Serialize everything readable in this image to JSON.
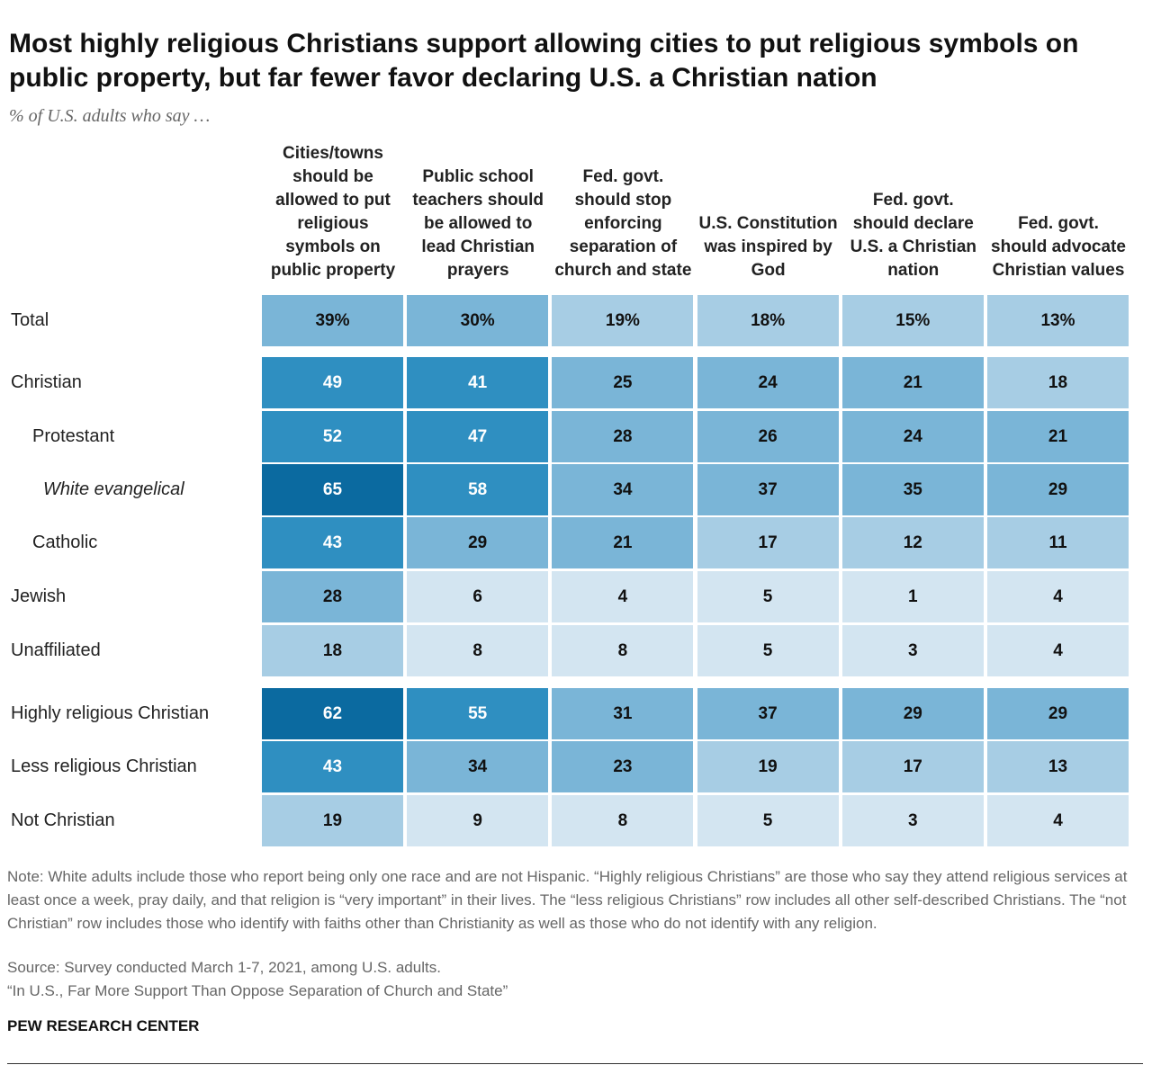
{
  "chart_data": {
    "type": "heatmap",
    "title": "Most highly religious Christians support allowing cities to put religious symbols on public property, but far fewer favor declaring U.S. a Christian nation",
    "subtitle": "% of U.S. adults who say …",
    "columns": [
      "Cities/towns should be allowed to put religious symbols on public property",
      "Public school teachers should be allowed to lead Christian prayers",
      "Fed. govt. should stop enforcing separation of church and state",
      "U.S. Constitution was inspired by God",
      "Fed. govt. should declare U.S. a Christian nation",
      "Fed. govt. should advocate Christian values"
    ],
    "categories": [
      "Total",
      "Christian",
      "Protestant",
      "White evangelical",
      "Catholic",
      "Jewish",
      "Unaffiliated",
      "Highly religious Christian",
      "Less religious Christian",
      "Not Christian"
    ],
    "values": [
      [
        39,
        30,
        19,
        18,
        15,
        13
      ],
      [
        49,
        41,
        25,
        24,
        21,
        18
      ],
      [
        52,
        47,
        28,
        26,
        24,
        21
      ],
      [
        65,
        58,
        34,
        37,
        35,
        29
      ],
      [
        43,
        29,
        21,
        17,
        12,
        11
      ],
      [
        28,
        6,
        4,
        5,
        1,
        4
      ],
      [
        18,
        8,
        8,
        5,
        3,
        4
      ],
      [
        62,
        55,
        31,
        37,
        29,
        29
      ],
      [
        43,
        34,
        23,
        19,
        17,
        13
      ],
      [
        19,
        9,
        8,
        5,
        3,
        4
      ]
    ],
    "value_labels": [
      [
        "39%",
        "30%",
        "19%",
        "18%",
        "15%",
        "13%"
      ],
      null,
      null,
      null,
      null,
      null,
      null,
      null,
      null,
      null
    ],
    "colors": [
      "#d3e5f1",
      "#a7cde4",
      "#7ab5d7",
      "#2f8fc1",
      "#0b6aa0"
    ],
    "note": "Note: White adults include those who report being only one race and are not Hispanic. “Highly religious Christians” are those who say they attend religious services at least once a week, pray daily, and that religion is “very important” in their lives. The “less religious Christians” row includes all other self-described Christians. The “not Christian” row includes those who identify with faiths other than Christianity as well as those who do not identify with any religion.",
    "source": "Source: Survey conducted March 1-7, 2021, among U.S. adults.",
    "report": "“In U.S., Far More Support Than Oppose Separation of Church and State”",
    "brand": "PEW RESEARCH CENTER"
  }
}
